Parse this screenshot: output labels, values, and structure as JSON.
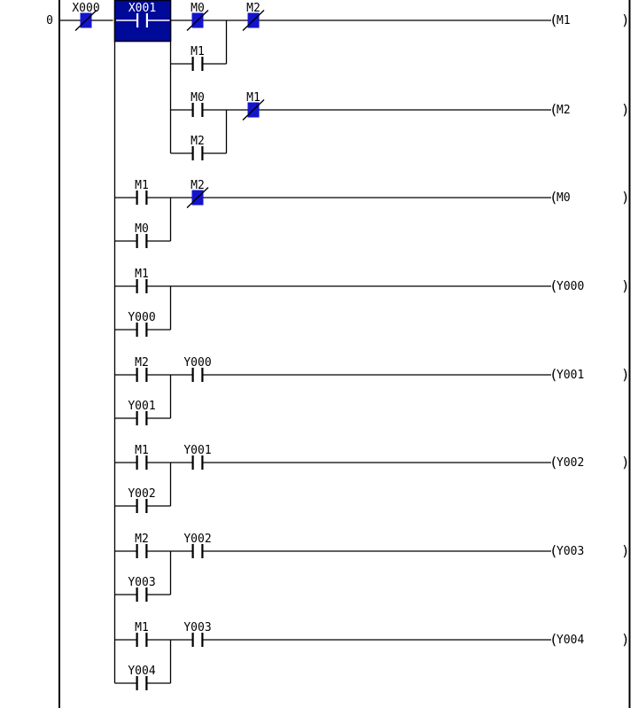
{
  "app": {
    "title": "ladder-logic-editor"
  },
  "colors": {
    "background": "#ffffff",
    "wire": "#000000",
    "contact_on_fill": "#1414cc",
    "cursor_fill": "#000a99",
    "cursor_border": "#000020",
    "cursor_symbol": "#ffffff",
    "cursor_edge_highlight": "#ffffc8"
  },
  "symbols": {
    "coil_open": "(",
    "coil_close": ")"
  },
  "left_margin": {
    "rung_number": "0"
  },
  "rungs": [
    {
      "coil": "M1",
      "series": [
        {
          "label": "X000",
          "kind": "nc_on"
        },
        {
          "label": "X001",
          "kind": "cursor"
        },
        {
          "label": "M0",
          "kind": "nc_on"
        },
        {
          "label": "M2",
          "kind": "nc_on"
        }
      ],
      "parallel": {
        "label": "M1",
        "kind": "no"
      }
    },
    {
      "coil": "M2",
      "series": [
        {
          "label": "M0",
          "kind": "no"
        },
        {
          "label": "M1",
          "kind": "nc_on"
        }
      ],
      "parallel": {
        "label": "M2",
        "kind": "no"
      }
    },
    {
      "coil": "M0",
      "series": [
        {
          "label": "M1",
          "kind": "no"
        },
        {
          "label": "M2",
          "kind": "nc_on"
        }
      ],
      "parallel": {
        "label": "M0",
        "kind": "no"
      }
    },
    {
      "coil": "Y000",
      "series": [
        {
          "label": "M1",
          "kind": "no"
        }
      ],
      "parallel": {
        "label": "Y000",
        "kind": "no"
      }
    },
    {
      "coil": "Y001",
      "series": [
        {
          "label": "M2",
          "kind": "no"
        },
        {
          "label": "Y000",
          "kind": "no"
        }
      ],
      "parallel": {
        "label": "Y001",
        "kind": "no"
      }
    },
    {
      "coil": "Y002",
      "series": [
        {
          "label": "M1",
          "kind": "no"
        },
        {
          "label": "Y001",
          "kind": "no"
        }
      ],
      "parallel": {
        "label": "Y002",
        "kind": "no"
      }
    },
    {
      "coil": "Y003",
      "series": [
        {
          "label": "M2",
          "kind": "no"
        },
        {
          "label": "Y002",
          "kind": "no"
        }
      ],
      "parallel": {
        "label": "Y003",
        "kind": "no"
      }
    },
    {
      "coil": "Y004",
      "series": [
        {
          "label": "M1",
          "kind": "no"
        },
        {
          "label": "Y003",
          "kind": "no"
        }
      ],
      "parallel": {
        "label": "Y004",
        "kind": "no"
      }
    }
  ]
}
